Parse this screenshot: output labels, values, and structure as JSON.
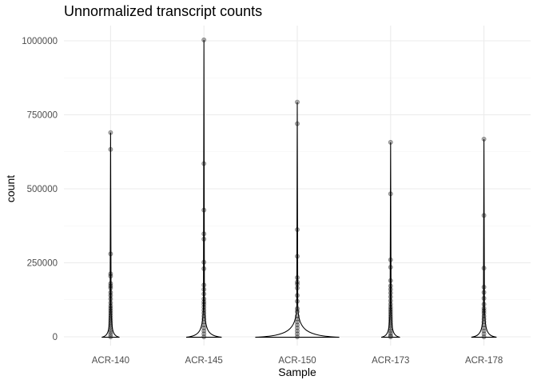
{
  "chart_data": {
    "type": "violin",
    "title": "Unnormalized transcript counts",
    "xlabel": "Sample",
    "ylabel": "count",
    "ylim": [
      -10000,
      1010000
    ],
    "yticks": [
      0,
      250000,
      500000,
      750000,
      1000000
    ],
    "ytick_labels": [
      "0",
      "250000",
      "500000",
      "750000",
      "1000000"
    ],
    "grid": true,
    "point_alpha": 0.3,
    "categories": [
      "ACR-140",
      "ACR-145",
      "ACR-150",
      "ACR-173",
      "ACR-178"
    ],
    "series": [
      {
        "category": "ACR-140",
        "max": 690000,
        "points": [
          690000,
          633000,
          280000,
          213000,
          205000,
          180000,
          172000,
          165000,
          150000,
          140000,
          128000,
          115000,
          104000,
          96000,
          88000,
          80000,
          72000,
          64000,
          56000,
          48000,
          40000,
          32000,
          24000,
          16000,
          8000,
          0
        ]
      },
      {
        "category": "ACR-145",
        "max": 1003000,
        "points": [
          1003000,
          585000,
          428000,
          348000,
          330000,
          252000,
          230000,
          175000,
          160000,
          145000,
          128000,
          118000,
          110000,
          100000,
          90000,
          80000,
          70000,
          60000,
          50000,
          40000,
          30000,
          20000,
          10000,
          0
        ]
      },
      {
        "category": "ACR-150",
        "max": 793000,
        "points": [
          793000,
          720000,
          362000,
          272000,
          200000,
          185000,
          178000,
          165000,
          140000,
          120000,
          95000,
          85000,
          70000,
          60000,
          50000,
          40000,
          30000,
          20000,
          10000,
          0
        ]
      },
      {
        "category": "ACR-173",
        "max": 657000,
        "points": [
          657000,
          483000,
          260000,
          235000,
          190000,
          172000,
          160000,
          148000,
          135000,
          122000,
          110000,
          100000,
          92000,
          84000,
          76000,
          68000,
          60000,
          52000,
          44000,
          36000,
          28000,
          20000,
          12000,
          4000,
          0
        ]
      },
      {
        "category": "ACR-178",
        "max": 668000,
        "points": [
          668000,
          410000,
          232000,
          168000,
          150000,
          130000,
          110000,
          96000,
          88000,
          80000,
          70000,
          60000,
          50000,
          40000,
          30000,
          20000,
          10000,
          0
        ]
      }
    ],
    "violin_base_halfwidth_fraction": [
      0.19,
      0.38,
      0.9,
      0.2,
      0.27
    ]
  }
}
